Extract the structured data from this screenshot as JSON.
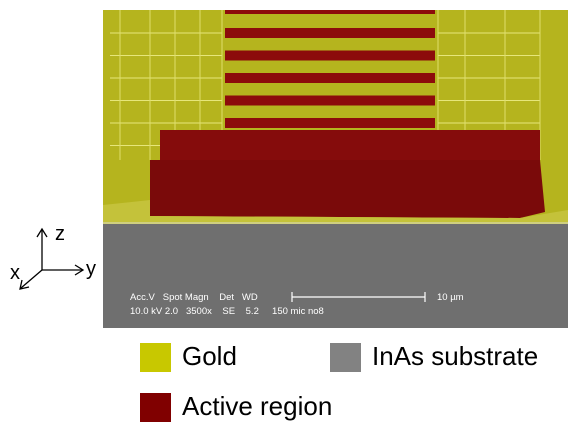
{
  "axes": {
    "z": "z",
    "y": "y",
    "x": "x"
  },
  "sem_info": {
    "header": "Acc.V   Spot Magn    Det   WD",
    "values": "10.0 kV 2.0   3500x    SE    5.2     150 mic no8",
    "scale": "10 µm"
  },
  "legend": {
    "gold": "Gold",
    "substrate": "InAs substrate",
    "active": "Active region"
  }
}
